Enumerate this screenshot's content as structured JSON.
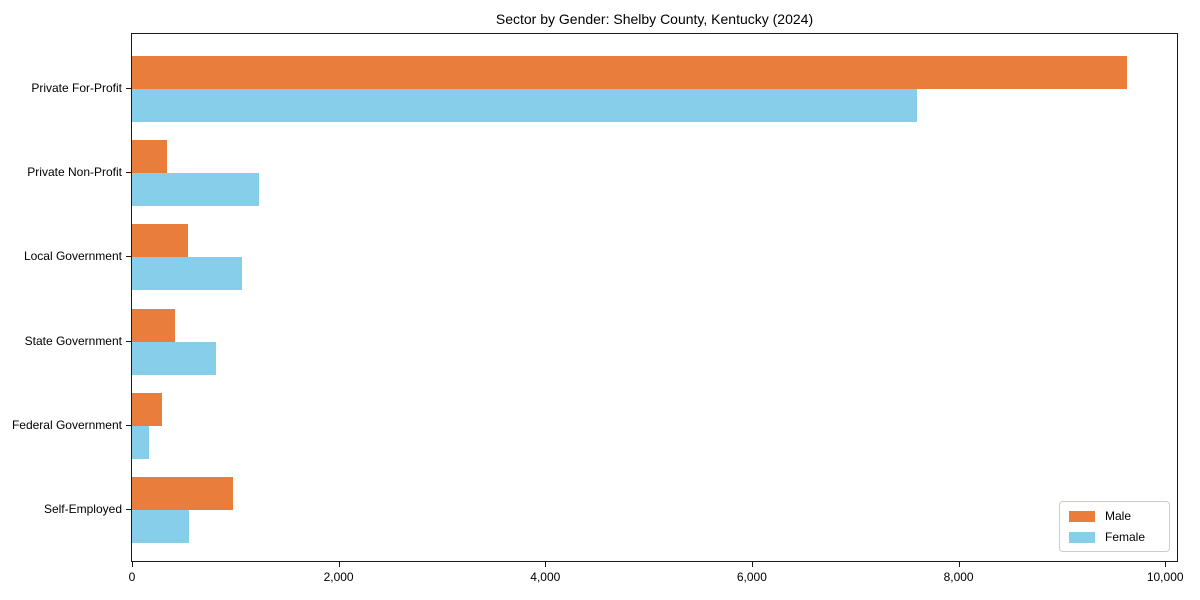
{
  "chart_data": {
    "type": "bar",
    "orientation": "horizontal",
    "title": "Sector by Gender: Shelby County, Kentucky (2024)",
    "categories": [
      "Private For-Profit",
      "Private Non-Profit",
      "Local Government",
      "State Government",
      "Federal Government",
      "Self-Employed"
    ],
    "series": [
      {
        "name": "Male",
        "color": "#e87d3c",
        "values": [
          9630,
          340,
          540,
          420,
          290,
          980
        ]
      },
      {
        "name": "Female",
        "color": "#87ceeb",
        "values": [
          7600,
          1230,
          1060,
          810,
          160,
          550
        ]
      }
    ],
    "xlabel": "",
    "ylabel": "",
    "xlim": [
      0,
      10114
    ],
    "xticks": [
      0,
      2000,
      4000,
      6000,
      8000,
      10000
    ],
    "xtick_labels": [
      "0",
      "2,000",
      "4,000",
      "6,000",
      "8,000",
      "10,000"
    ],
    "legend_position": "lower right",
    "grid": false
  }
}
